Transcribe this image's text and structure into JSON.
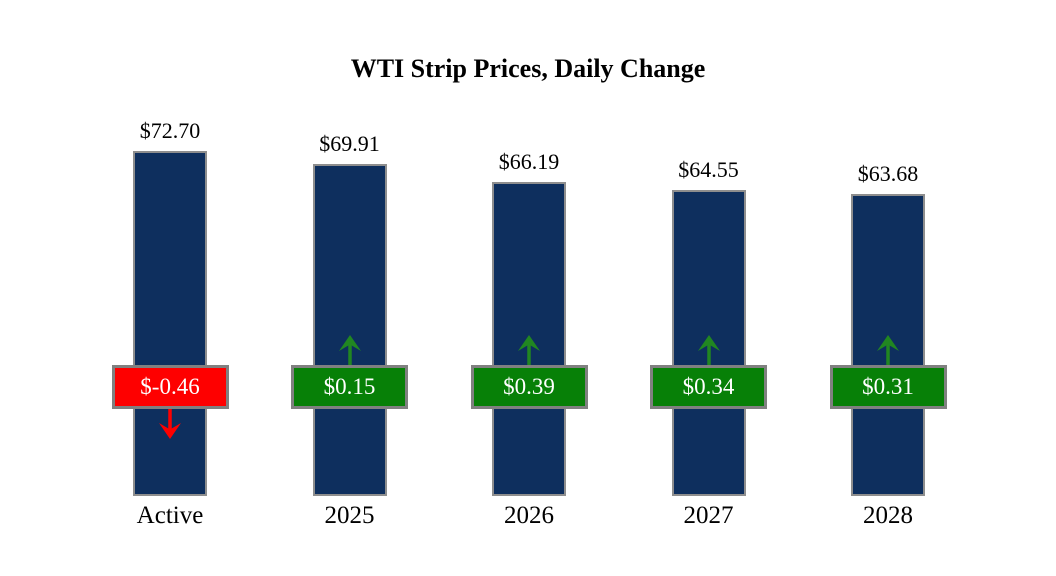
{
  "chart_data": {
    "type": "bar",
    "title": "WTI Strip Prices, Daily Change",
    "categories": [
      "Active",
      "2025",
      "2026",
      "2027",
      "2028"
    ],
    "series": [
      {
        "name": "strip_price",
        "values": [
          72.7,
          69.91,
          66.19,
          64.55,
          63.68
        ],
        "labels": [
          "$72.70",
          "$69.91",
          "$66.19",
          "$64.55",
          "$63.68"
        ]
      },
      {
        "name": "daily_change",
        "values": [
          -0.46,
          0.15,
          0.39,
          0.34,
          0.31
        ],
        "labels": [
          "$-0.46",
          "$0.15",
          "$0.39",
          "$0.34",
          "$0.31"
        ]
      }
    ],
    "ylim": [
      0,
      76
    ],
    "grid": false,
    "legend": "none",
    "axes_visible": false,
    "colors": {
      "bar_fill": "#0e2f5e",
      "bar_border": "#8e8e8e",
      "positive_fill": "#078007",
      "negative_fill": "#fe0000",
      "positive_arrow": "#218721",
      "negative_arrow": "#fe0000",
      "box_border": "#808080",
      "box_text": "#ffffff",
      "label_text": "#000000",
      "background": "#ffffff"
    }
  }
}
